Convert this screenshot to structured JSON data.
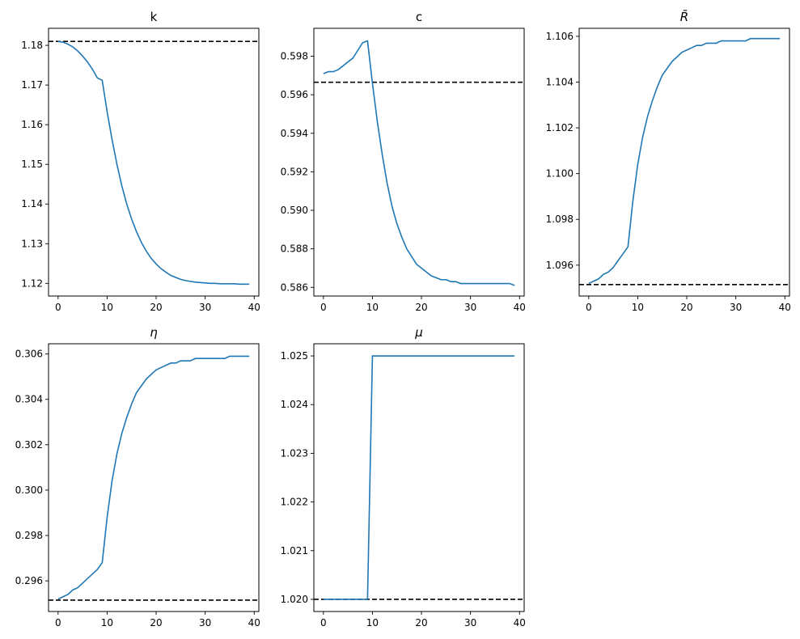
{
  "chart_data": [
    {
      "type": "line",
      "title": "k",
      "x": [
        0,
        1,
        2,
        3,
        4,
        5,
        6,
        7,
        8,
        9,
        10,
        11,
        12,
        13,
        14,
        15,
        16,
        17,
        18,
        19,
        20,
        21,
        22,
        23,
        24,
        25,
        26,
        27,
        28,
        29,
        30,
        31,
        32,
        33,
        34,
        35,
        36,
        37,
        38,
        39
      ],
      "y": [
        1.181,
        1.1808,
        1.1803,
        1.1796,
        1.1786,
        1.1773,
        1.1758,
        1.174,
        1.1718,
        1.1712,
        1.1633,
        1.1563,
        1.15,
        1.1446,
        1.14,
        1.1362,
        1.133,
        1.1303,
        1.1281,
        1.1263,
        1.1249,
        1.1237,
        1.1228,
        1.122,
        1.1215,
        1.121,
        1.1207,
        1.1205,
        1.1203,
        1.1202,
        1.1201,
        1.12,
        1.12,
        1.1199,
        1.1199,
        1.1199,
        1.1199,
        1.1198,
        1.1198,
        1.1198
      ],
      "reference_line": 1.181,
      "xlim": [
        -1.95,
        40.95
      ],
      "ylim": [
        1.1168,
        1.1843
      ],
      "xticks": [
        0,
        10,
        20,
        30,
        40
      ],
      "xtick_labels": [
        "0",
        "10",
        "20",
        "30",
        "40"
      ],
      "yticks": [
        1.12,
        1.13,
        1.14,
        1.15,
        1.16,
        1.17,
        1.18
      ],
      "ytick_labels": [
        "1.12",
        "1.13",
        "1.14",
        "1.15",
        "1.16",
        "1.17",
        "1.18"
      ]
    },
    {
      "type": "line",
      "title": "c",
      "x": [
        0,
        1,
        2,
        3,
        4,
        5,
        6,
        7,
        8,
        9,
        10,
        11,
        12,
        13,
        14,
        15,
        16,
        17,
        18,
        19,
        20,
        21,
        22,
        23,
        24,
        25,
        26,
        27,
        28,
        29,
        30,
        31,
        32,
        33,
        34,
        35,
        36,
        37,
        38,
        39
      ],
      "y": [
        0.5971,
        0.5972,
        0.5972,
        0.5973,
        0.5975,
        0.5977,
        0.5979,
        0.5983,
        0.5987,
        0.5988,
        0.5966,
        0.5946,
        0.5929,
        0.5914,
        0.5902,
        0.5893,
        0.5886,
        0.588,
        0.5876,
        0.5872,
        0.587,
        0.5868,
        0.5866,
        0.5865,
        0.5864,
        0.5864,
        0.5863,
        0.5863,
        0.5862,
        0.5862,
        0.5862,
        0.5862,
        0.5862,
        0.5862,
        0.5862,
        0.5862,
        0.5862,
        0.5862,
        0.5862,
        0.5861
      ],
      "reference_line": 0.59665,
      "xlim": [
        -1.95,
        40.95
      ],
      "ylim": [
        0.58555,
        0.59945
      ],
      "xticks": [
        0,
        10,
        20,
        30,
        40
      ],
      "xtick_labels": [
        "0",
        "10",
        "20",
        "30",
        "40"
      ],
      "yticks": [
        0.586,
        0.588,
        0.59,
        0.592,
        0.594,
        0.596,
        0.598
      ],
      "ytick_labels": [
        "0.586",
        "0.588",
        "0.590",
        "0.592",
        "0.594",
        "0.596",
        "0.598"
      ]
    },
    {
      "type": "line",
      "title": "R̄",
      "x": [
        0,
        1,
        2,
        3,
        4,
        5,
        6,
        7,
        8,
        9,
        10,
        11,
        12,
        13,
        14,
        15,
        16,
        17,
        18,
        19,
        20,
        21,
        22,
        23,
        24,
        25,
        26,
        27,
        28,
        29,
        30,
        31,
        32,
        33,
        34,
        35,
        36,
        37,
        38,
        39
      ],
      "y": [
        1.0952,
        1.0953,
        1.0954,
        1.0956,
        1.0957,
        1.0959,
        1.0962,
        1.0965,
        1.0968,
        1.0988,
        1.1004,
        1.1016,
        1.1025,
        1.1032,
        1.1038,
        1.1043,
        1.1046,
        1.1049,
        1.1051,
        1.1053,
        1.1054,
        1.1055,
        1.1056,
        1.1056,
        1.1057,
        1.1057,
        1.1057,
        1.1058,
        1.1058,
        1.1058,
        1.1058,
        1.1058,
        1.1058,
        1.1059,
        1.1059,
        1.1059,
        1.1059,
        1.1059,
        1.1059,
        1.1059
      ],
      "reference_line": 1.09515,
      "xlim": [
        -1.95,
        40.95
      ],
      "ylim": [
        1.09465,
        1.10635
      ],
      "xticks": [
        0,
        10,
        20,
        30,
        40
      ],
      "xtick_labels": [
        "0",
        "10",
        "20",
        "30",
        "40"
      ],
      "yticks": [
        1.096,
        1.098,
        1.1,
        1.102,
        1.104,
        1.106
      ],
      "ytick_labels": [
        "1.096",
        "1.098",
        "1.100",
        "1.102",
        "1.104",
        "1.106"
      ]
    },
    {
      "type": "line",
      "title": "η",
      "x": [
        0,
        1,
        2,
        3,
        4,
        5,
        6,
        7,
        8,
        9,
        10,
        11,
        12,
        13,
        14,
        15,
        16,
        17,
        18,
        19,
        20,
        21,
        22,
        23,
        24,
        25,
        26,
        27,
        28,
        29,
        30,
        31,
        32,
        33,
        34,
        35,
        36,
        37,
        38,
        39
      ],
      "y": [
        0.2952,
        0.2953,
        0.2954,
        0.2956,
        0.2957,
        0.2959,
        0.2961,
        0.2963,
        0.2965,
        0.2968,
        0.2988,
        0.3004,
        0.3016,
        0.3025,
        0.3032,
        0.3038,
        0.3043,
        0.3046,
        0.3049,
        0.3051,
        0.3053,
        0.3054,
        0.3055,
        0.3056,
        0.3056,
        0.3057,
        0.3057,
        0.3057,
        0.3058,
        0.3058,
        0.3058,
        0.3058,
        0.3058,
        0.3058,
        0.3058,
        0.3059,
        0.3059,
        0.3059,
        0.3059,
        0.3059
      ],
      "reference_line": 0.29515,
      "xlim": [
        -1.95,
        40.95
      ],
      "ylim": [
        0.29465,
        0.30645
      ],
      "xticks": [
        0,
        10,
        20,
        30,
        40
      ],
      "xtick_labels": [
        "0",
        "10",
        "20",
        "30",
        "40"
      ],
      "yticks": [
        0.296,
        0.298,
        0.3,
        0.302,
        0.304,
        0.306
      ],
      "ytick_labels": [
        "0.296",
        "0.298",
        "0.300",
        "0.302",
        "0.304",
        "0.306"
      ]
    },
    {
      "type": "line",
      "title": "μ",
      "x": [
        0,
        1,
        2,
        3,
        4,
        5,
        6,
        7,
        8,
        9,
        10,
        11,
        12,
        13,
        14,
        15,
        16,
        17,
        18,
        19,
        20,
        21,
        22,
        23,
        24,
        25,
        26,
        27,
        28,
        29,
        30,
        31,
        32,
        33,
        34,
        35,
        36,
        37,
        38,
        39
      ],
      "y": [
        1.02,
        1.02,
        1.02,
        1.02,
        1.02,
        1.02,
        1.02,
        1.02,
        1.02,
        1.02,
        1.025,
        1.025,
        1.025,
        1.025,
        1.025,
        1.025,
        1.025,
        1.025,
        1.025,
        1.025,
        1.025,
        1.025,
        1.025,
        1.025,
        1.025,
        1.025,
        1.025,
        1.025,
        1.025,
        1.025,
        1.025,
        1.025,
        1.025,
        1.025,
        1.025,
        1.025,
        1.025,
        1.025,
        1.025,
        1.025
      ],
      "reference_line": 1.02,
      "xlim": [
        -1.95,
        40.95
      ],
      "ylim": [
        1.01975,
        1.02525
      ],
      "xticks": [
        0,
        10,
        20,
        30,
        40
      ],
      "xtick_labels": [
        "0",
        "10",
        "20",
        "30",
        "40"
      ],
      "yticks": [
        1.02,
        1.021,
        1.022,
        1.023,
        1.024,
        1.025
      ],
      "ytick_labels": [
        "1.020",
        "1.021",
        "1.022",
        "1.023",
        "1.024",
        "1.025"
      ]
    }
  ],
  "colors": {
    "series": "#1f77b4",
    "reference": "#000000"
  }
}
